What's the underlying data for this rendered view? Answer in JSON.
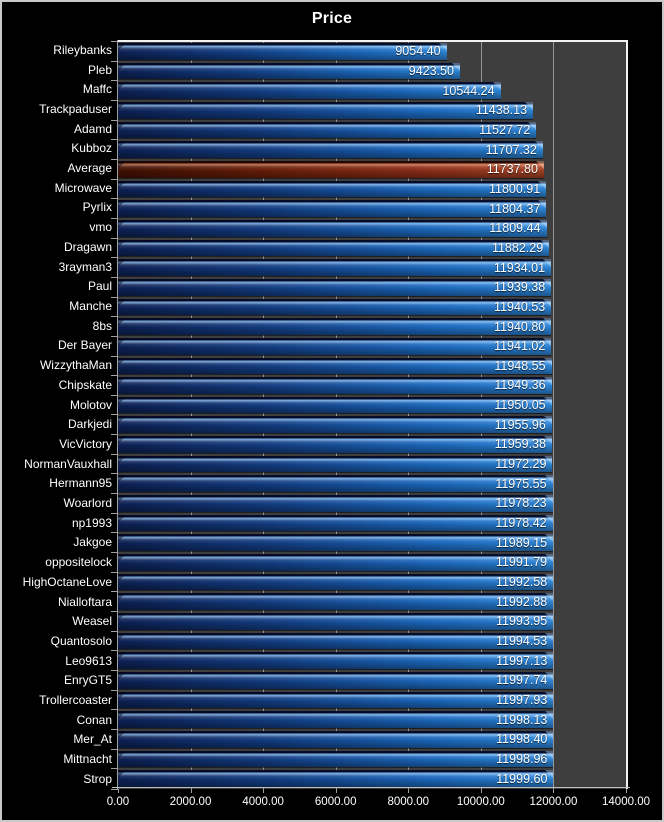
{
  "title": "Price",
  "frame": {
    "background": "#000000",
    "border_color": "#c9c9c9"
  },
  "chart_data": {
    "type": "bar",
    "orientation": "horizontal",
    "title": "Price",
    "xlabel": "",
    "ylabel": "",
    "xlim": [
      0,
      14000
    ],
    "grid": true,
    "legend": false,
    "highlight_category": "Average",
    "x_ticks": [
      "0.00",
      "2000.00",
      "4000.00",
      "6000.00",
      "8000.00",
      "10000.00",
      "12000.00",
      "14000.00"
    ],
    "categories": [
      "Rileybanks",
      "Pleb",
      "Maffc",
      "Trackpaduser",
      "Adamd",
      "Kubboz",
      "Average",
      "Microwave",
      "Pyrlix",
      "vmo",
      "Dragawn",
      "3rayman3",
      "Paul",
      "Manche",
      "8bs",
      "Der Bayer",
      "WizzythaMan",
      "Chipskate",
      "Molotov",
      "Darkjedi",
      "VicVictory",
      "NormanVauxhall",
      "Hermann95",
      "Woarlord",
      "np1993",
      "Jakgoe",
      "oppositelock",
      "HighOctaneLove",
      "Nialloftara",
      "Weasel",
      "Quantosolo",
      "Leo9613",
      "EnryGT5",
      "Trollercoaster",
      "Conan",
      "Mer_At",
      "Mittnacht",
      "Strop"
    ],
    "values": [
      9054.4,
      9423.5,
      10544.24,
      11438.13,
      11527.72,
      11707.32,
      11737.8,
      11800.91,
      11804.37,
      11809.44,
      11882.29,
      11934.01,
      11939.38,
      11940.53,
      11940.8,
      11941.02,
      11948.55,
      11949.36,
      11950.05,
      11955.96,
      11959.38,
      11972.29,
      11975.55,
      11978.23,
      11978.42,
      11989.15,
      11991.79,
      11992.58,
      11992.88,
      11993.95,
      11994.53,
      11997.13,
      11997.74,
      11997.93,
      11998.13,
      11998.4,
      11998.96,
      11999.6
    ],
    "value_labels": [
      "9054.40",
      "9423.50",
      "10544.24",
      "11438.13",
      "11527.72",
      "11707.32",
      "11737.80",
      "11800.91",
      "11804.37",
      "11809.44",
      "11882.29",
      "11934.01",
      "11939.38",
      "11940.53",
      "11940.80",
      "11941.02",
      "11948.55",
      "11949.36",
      "11950.05",
      "11955.96",
      "11959.38",
      "11972.29",
      "11975.55",
      "11978.23",
      "11978.42",
      "11989.15",
      "11991.79",
      "11992.58",
      "11992.88",
      "11993.95",
      "11994.53",
      "11997.13",
      "11997.74",
      "11997.93",
      "11998.13",
      "11998.40",
      "11998.96",
      "11999.60"
    ],
    "colors": {
      "bar": "#1c6bc2",
      "bar_highlight": "#93301a",
      "background": "#000000",
      "plot_background": "#3e3e3e",
      "gridline": "#969696",
      "text": "#ffffff"
    }
  }
}
